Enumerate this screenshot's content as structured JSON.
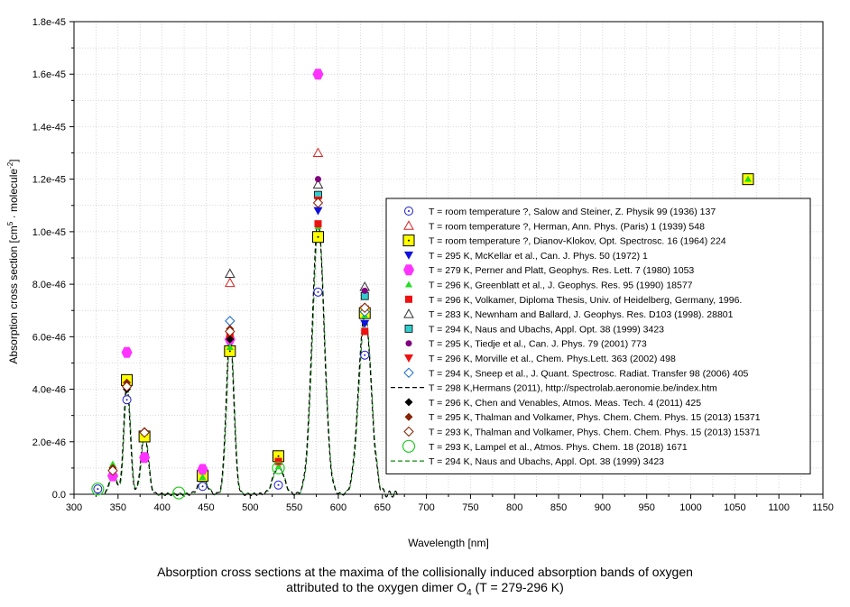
{
  "chart_data": {
    "type": "scatter",
    "xlabel": "Wavelength [nm]",
    "ylabel": "Absorption cross section [cm^5 · molecule^-2]",
    "ylabel_parts": [
      "Absorption cross section [cm",
      "5",
      " · molecule",
      "-2",
      "]"
    ],
    "xlim": [
      300,
      1150
    ],
    "ylim": [
      0,
      1.8e-45
    ],
    "xticks": [
      300,
      350,
      400,
      450,
      500,
      550,
      600,
      650,
      700,
      750,
      800,
      850,
      900,
      950,
      1000,
      1050,
      1100,
      1150
    ],
    "yticks": [
      0,
      2e-46,
      4e-46,
      6e-46,
      8e-46,
      1e-45,
      1.2e-45,
      1.4e-45,
      1.6e-45,
      1.8e-45
    ],
    "ytick_labels": [
      "0.0",
      "2.0e-46",
      "4.0e-46",
      "6.0e-46",
      "8.0e-46",
      "1.0e-45",
      "1.2e-45",
      "1.4e-45",
      "1.6e-45",
      "1.8e-45"
    ],
    "grid": true,
    "legend_position": "right",
    "series": [
      {
        "name": "T = room temperature ?, Salow and Steiner, Z. Physik 99 (1936) 137",
        "marker": "circle-open",
        "color": "#1a1acc",
        "points": [
          [
            327,
            2e-47
          ],
          [
            360,
            3.6e-46
          ],
          [
            446,
            3e-47
          ],
          [
            477,
            5.4e-46
          ],
          [
            532,
            3.5e-47
          ],
          [
            577,
            7.7e-46
          ],
          [
            630,
            5.3e-46
          ]
        ]
      },
      {
        "name": "T = room temperature ?, Herman, Ann. Phys. (Paris) 1 (1939) 548",
        "marker": "triangle-open",
        "color": "#dd2222",
        "points": [
          [
            477,
            8.05e-46
          ],
          [
            577,
            1.3e-45
          ]
        ]
      },
      {
        "name": "T = room temperature ?, Dianov-Klokov, Opt. Spectrosc. 16 (1964) 224",
        "marker": "square-yellow",
        "color": "#ffff00",
        "points": [
          [
            360,
            4.35e-46
          ],
          [
            380,
            2.2e-46
          ],
          [
            446,
            7e-47
          ],
          [
            477,
            5.45e-46
          ],
          [
            532,
            1.45e-46
          ],
          [
            577,
            9.8e-46
          ],
          [
            630,
            6.9e-46
          ],
          [
            1065,
            1.2e-45
          ]
        ]
      },
      {
        "name": "T = 295 K, McKellar et al., Can. J. Phys. 50 (1972) 1",
        "marker": "triangle-down",
        "color": "#1111dd",
        "points": [
          [
            577,
            1.08e-45
          ],
          [
            630,
            6.5e-46
          ]
        ]
      },
      {
        "name": "T = 279 K, Perner and Platt, Geophys. Res. Lett. 7 (1980) 1053",
        "marker": "hexagon",
        "color": "#ff33ff",
        "points": [
          [
            344,
            7e-47
          ],
          [
            360,
            5.4e-46
          ],
          [
            380,
            1.4e-46
          ],
          [
            446,
            9.5e-47
          ],
          [
            477,
            5.9e-46
          ],
          [
            577,
            1.6e-45
          ]
        ]
      },
      {
        "name": "T = 296 K, Greenblatt et al., J. Geophys. Res. 95 (1990) 18577",
        "marker": "triangle",
        "color": "#22dd22",
        "points": [
          [
            344,
            1.15e-46
          ],
          [
            360,
            4.25e-46
          ],
          [
            380,
            2.35e-46
          ],
          [
            446,
            6.5e-47
          ],
          [
            477,
            5.6e-46
          ],
          [
            532,
            1.05e-46
          ],
          [
            577,
            1.02e-45
          ],
          [
            630,
            6.8e-46
          ],
          [
            1065,
            1.2e-45
          ]
        ]
      },
      {
        "name": "T = 296 K, Volkamer, Diploma Thesis, Univ. of Heidelberg, Germany, 1996.",
        "marker": "square",
        "color": "#ee1111",
        "points": [
          [
            477,
            6.05e-46
          ],
          [
            532,
            1.25e-46
          ],
          [
            577,
            1.03e-45
          ],
          [
            630,
            6.2e-46
          ]
        ]
      },
      {
        "name": "T = 283 K, Newnham and Ballard, J. Geophys. Res. D103 (1998). 28801",
        "marker": "triangle-open",
        "color": "#333333",
        "points": [
          [
            477,
            8.4e-46
          ],
          [
            577,
            1.18e-45
          ],
          [
            630,
            7.9e-46
          ]
        ]
      },
      {
        "name": "T = 294 K, Naus and Ubachs, Appl. Opt. 38 (1999) 3423",
        "marker": "square-cyan",
        "color": "#33cccc",
        "points": [
          [
            577,
            1.14e-45
          ],
          [
            630,
            7.55e-46
          ]
        ]
      },
      {
        "name": "T = 295 K, Tiedje et al., Can. J. Phys. 79 (2001) 773",
        "marker": "circle",
        "color": "#800080",
        "points": [
          [
            577,
            1.2e-45
          ],
          [
            630,
            7.75e-46
          ]
        ]
      },
      {
        "name": "T = 296 K, Morville et al., Chem. Phys.Lett. 363 (2002) 498",
        "marker": "triangle-down",
        "color": "#ee1111",
        "points": [
          [
            577,
            1.12e-45
          ],
          [
            630,
            7.05e-46
          ]
        ]
      },
      {
        "name": "T = 294 K, Sneep et al., J. Quant. Spectrosc. Radiat. Transfer 98 (2006) 405",
        "marker": "diamond-open",
        "color": "#1166cc",
        "points": [
          [
            477,
            6.6e-46
          ],
          [
            630,
            6.95e-46
          ]
        ]
      },
      {
        "name": "T = 298 K,Hermans (2011), http://spectrolab.aeronomie.be/index.htm",
        "marker": "line-dashed",
        "color": "#000000",
        "points": []
      },
      {
        "name": "T = 296 K, Chen and Venables, Atmos. Meas. Tech. 4 (2011) 425",
        "marker": "diamond",
        "color": "#000000",
        "points": [
          [
            344,
            9.5e-47
          ],
          [
            360,
            4e-46
          ],
          [
            380,
            2.4e-46
          ],
          [
            477,
            5.9e-46
          ]
        ]
      },
      {
        "name": "T = 295 K, Thalman and Volkamer, Phys. Chem. Chem. Phys. 15 (2013) 15371",
        "marker": "diamond",
        "color": "#882200",
        "points": [
          [
            344,
            1e-46
          ],
          [
            360,
            4.25e-46
          ],
          [
            380,
            2.4e-46
          ],
          [
            477,
            6.3e-46
          ],
          [
            577,
            1.11e-45
          ],
          [
            630,
            7.15e-46
          ]
        ]
      },
      {
        "name": "T = 293 K, Thalman and Volkamer, Phys. Chem. Chem. Phys. 15 (2013) 15371",
        "marker": "diamond-open",
        "color": "#882200",
        "points": [
          [
            344,
            9e-47
          ],
          [
            360,
            4.1e-46
          ],
          [
            380,
            2.35e-46
          ],
          [
            477,
            6.2e-46
          ],
          [
            577,
            1.11e-45
          ],
          [
            630,
            7.1e-46
          ]
        ]
      },
      {
        "name": "T = 293 K, Lampel et al., Atmos. Phys. Chem. 18 (2018) 1671",
        "marker": "circle-open-large",
        "color": "#22cc22",
        "points": [
          [
            327,
            2e-47
          ],
          [
            419,
            5e-48
          ],
          [
            532,
            1e-46
          ]
        ]
      },
      {
        "name": "T = 294 K, Naus and Ubachs, Appl. Opt. 38 (1999) 3423",
        "marker": "line-dashed",
        "color": "#118811",
        "points": []
      }
    ]
  },
  "caption": {
    "line1": "Absorption cross sections at the maxima of the collisionally induced absorption bands of oxygen",
    "line2_before": "attributed to the oxygen dimer O",
    "line2_sub": "4",
    "line2_after": " (T = 279-296 K)"
  }
}
